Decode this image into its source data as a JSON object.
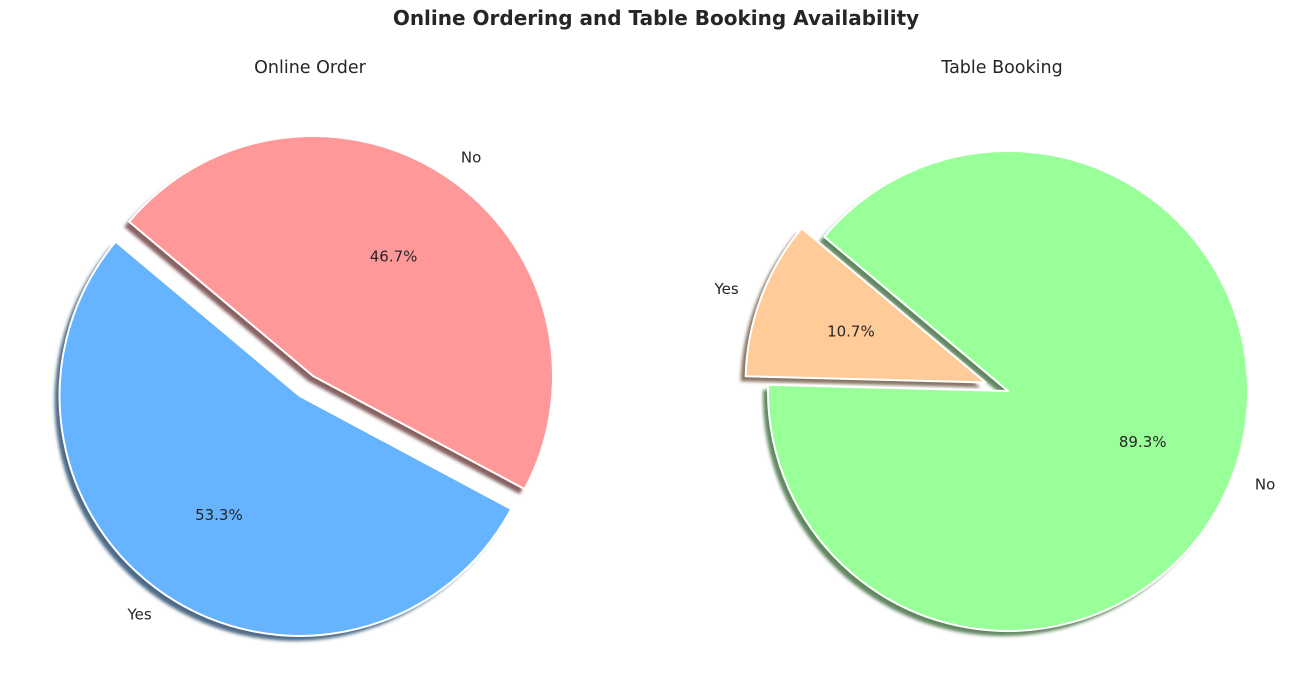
{
  "title": "Online Ordering and Table Booking Availability",
  "chart_data": [
    {
      "type": "pie",
      "title": "Online Order",
      "slices": [
        {
          "label": "Yes",
          "value": 53.3,
          "pct_label": "53.3%",
          "color": "#66b3ff",
          "exploded": true
        },
        {
          "label": "No",
          "value": 46.7,
          "pct_label": "46.7%",
          "color": "#ff9999",
          "exploded": false
        }
      ],
      "start_angle_deg": 140,
      "shadow": true
    },
    {
      "type": "pie",
      "title": "Table Booking",
      "slices": [
        {
          "label": "Yes",
          "value": 10.7,
          "pct_label": "10.7%",
          "color": "#ffcc99",
          "exploded": true
        },
        {
          "label": "No",
          "value": 89.3,
          "pct_label": "89.3%",
          "color": "#99ff99",
          "exploded": false
        }
      ],
      "start_angle_deg": 140,
      "shadow": true
    }
  ]
}
